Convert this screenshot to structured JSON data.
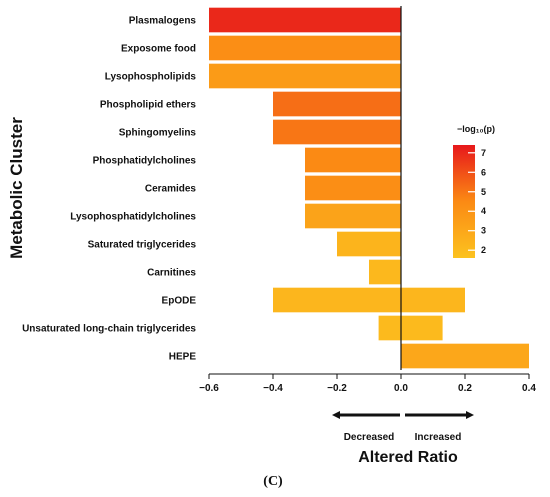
{
  "chart_data": {
    "type": "bar",
    "orientation": "horizontal",
    "categories": [
      "Plasmalogens",
      "Exposome food",
      "Lysophospholipids",
      "Phospholipid ethers",
      "Sphingomyelins",
      "Phosphatidylcholines",
      "Ceramides",
      "Lysophosphatidylcholines",
      "Saturated triglycerides",
      "Carnitines",
      "EpODE",
      "Unsaturated long-chain triglycerides",
      "HEPE"
    ],
    "bars": [
      [
        {
          "value": -0.6,
          "neglog10p": 7.0
        }
      ],
      [
        {
          "value": -0.6,
          "neglog10p": 4.3
        }
      ],
      [
        {
          "value": -0.6,
          "neglog10p": 3.6
        }
      ],
      [
        {
          "value": -0.4,
          "neglog10p": 5.2
        }
      ],
      [
        {
          "value": -0.4,
          "neglog10p": 5.0
        }
      ],
      [
        {
          "value": -0.3,
          "neglog10p": 4.5
        }
      ],
      [
        {
          "value": -0.3,
          "neglog10p": 4.3
        }
      ],
      [
        {
          "value": -0.3,
          "neglog10p": 3.2
        }
      ],
      [
        {
          "value": -0.2,
          "neglog10p": 2.3
        }
      ],
      [
        {
          "value": -0.1,
          "neglog10p": 2.1
        }
      ],
      [
        {
          "value": -0.4,
          "neglog10p": 2.2
        },
        {
          "value": 0.2,
          "neglog10p": 2.2
        }
      ],
      [
        {
          "value": -0.07,
          "neglog10p": 2.0
        },
        {
          "value": 0.13,
          "neglog10p": 2.0
        }
      ],
      [
        {
          "value": 0.4,
          "neglog10p": 3.0
        }
      ]
    ],
    "xlabel": "Altered Ratio",
    "ylabel": "Metabolic Cluster",
    "xlim": [
      -0.65,
      0.42
    ],
    "xticks": [
      -0.6,
      -0.4,
      -0.2,
      0.0,
      0.2,
      0.4
    ],
    "xtick_labels": [
      "−0.6",
      "−0.4",
      "−0.2",
      "0.0",
      "0.2",
      "0.4"
    ],
    "legend": {
      "title": "−log₁₀(p)",
      "ticks": [
        2,
        3,
        4,
        5,
        6,
        7
      ],
      "range": [
        1.6,
        7.4
      ],
      "colors": {
        "low": "#fcc21f",
        "mid": "#fb8a14",
        "high": "#e7181b"
      },
      "placement": "right"
    },
    "direction": {
      "decreased": "Decreased",
      "increased": "Increased"
    },
    "panel_label": "(C)",
    "grid": false
  }
}
